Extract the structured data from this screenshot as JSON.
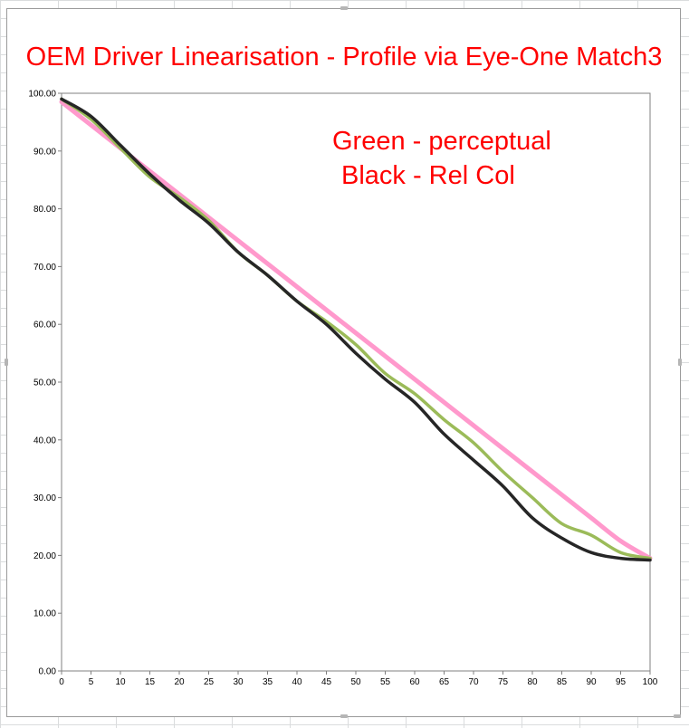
{
  "chart_data": {
    "type": "line",
    "title": "OEM Driver Linearisation - Profile via Eye-One Match3",
    "annotations": [
      "Green - perceptual",
      "Black - Rel Col"
    ],
    "xlabel": "",
    "ylabel": "",
    "xlim": [
      0,
      100
    ],
    "ylim": [
      0,
      100
    ],
    "x_ticks": [
      0,
      5,
      10,
      15,
      20,
      25,
      30,
      35,
      40,
      45,
      50,
      55,
      60,
      65,
      70,
      75,
      80,
      85,
      90,
      95,
      100
    ],
    "y_ticks": [
      0,
      10,
      20,
      30,
      40,
      50,
      60,
      70,
      80,
      90,
      100
    ],
    "y_tick_labels": [
      "0.00",
      "10.00",
      "20.00",
      "30.00",
      "40.00",
      "50.00",
      "60.00",
      "70.00",
      "80.00",
      "90.00",
      "100.00"
    ],
    "x_tick_labels": [
      "0",
      "5",
      "10",
      "15",
      "20",
      "25",
      "30",
      "35",
      "40",
      "45",
      "50",
      "55",
      "60",
      "65",
      "70",
      "75",
      "80",
      "85",
      "90",
      "95",
      "100"
    ],
    "grid": false,
    "x": [
      0,
      5,
      10,
      15,
      20,
      25,
      30,
      35,
      40,
      45,
      50,
      55,
      60,
      65,
      70,
      75,
      80,
      85,
      90,
      95,
      100
    ],
    "series": [
      {
        "color": "#ff99cc",
        "values": [
          98.5,
          94.5,
          90.5,
          86.5,
          82.5,
          78.5,
          74.5,
          70.5,
          66.5,
          62.5,
          58.5,
          54.5,
          50.5,
          46.5,
          42.5,
          38.5,
          34.5,
          30.5,
          26.5,
          22.5,
          19.5
        ]
      },
      {
        "color": "#9bbb59",
        "values": [
          99.0,
          95.5,
          90.5,
          85.5,
          82.0,
          78.0,
          72.5,
          68.5,
          64.0,
          60.5,
          56.5,
          51.5,
          48.0,
          43.5,
          39.5,
          34.5,
          30.0,
          25.5,
          23.5,
          20.5,
          19.5
        ]
      },
      {
        "color": "#262626",
        "values": [
          99.0,
          96.0,
          91.0,
          86.0,
          81.5,
          77.5,
          72.5,
          68.5,
          64.0,
          60.0,
          55.0,
          50.5,
          46.5,
          41.0,
          36.5,
          32.0,
          26.5,
          23.0,
          20.5,
          19.5,
          19.2
        ]
      }
    ]
  }
}
